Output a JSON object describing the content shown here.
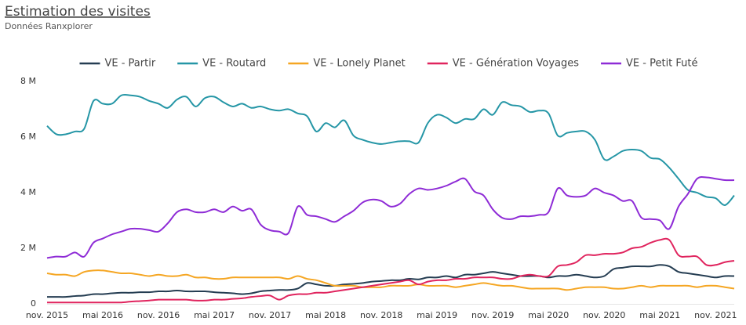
{
  "chart_data": {
    "type": "line",
    "title": "Estimation des visites",
    "subtitle": "Données Ranxplorer",
    "categories": [
      "nov. 2015",
      null,
      null,
      null,
      null,
      null,
      "mai 2016",
      null,
      null,
      null,
      null,
      null,
      "nov. 2016",
      null,
      null,
      null,
      null,
      null,
      "mai 2017",
      null,
      null,
      null,
      null,
      null,
      "nov. 2017",
      null,
      null,
      null,
      null,
      null,
      "mai 2018",
      null,
      null,
      null,
      null,
      null,
      "nov. 2018",
      null,
      null,
      null,
      null,
      null,
      "mai 2019",
      null,
      null,
      null,
      null,
      null,
      "nov. 2019",
      null,
      null,
      null,
      null,
      null,
      "mai 2020",
      null,
      null,
      null,
      null,
      null,
      "nov. 2020",
      null,
      null,
      null,
      null,
      null,
      "mai 2021",
      null,
      null,
      null,
      null,
      null,
      "nov. 2021",
      null,
      null
    ],
    "series": [
      {
        "name": "VE - Partir",
        "color": "#253d52",
        "values": [
          0.25,
          0.25,
          0.25,
          0.28,
          0.3,
          0.35,
          0.35,
          0.38,
          0.4,
          0.4,
          0.42,
          0.42,
          0.45,
          0.45,
          0.48,
          0.45,
          0.45,
          0.45,
          0.42,
          0.4,
          0.38,
          0.35,
          0.38,
          0.45,
          0.48,
          0.5,
          0.5,
          0.55,
          0.75,
          0.7,
          0.65,
          0.65,
          0.7,
          0.72,
          0.75,
          0.8,
          0.82,
          0.85,
          0.85,
          0.9,
          0.88,
          0.95,
          0.95,
          1.0,
          0.95,
          1.05,
          1.05,
          1.1,
          1.15,
          1.1,
          1.05,
          1.0,
          1.0,
          1.0,
          0.95,
          1.0,
          1.0,
          1.05,
          1.0,
          0.95,
          1.0,
          1.25,
          1.3,
          1.35,
          1.35,
          1.35,
          1.4,
          1.35,
          1.15,
          1.1,
          1.05,
          1.0,
          0.95,
          1.0,
          1.0
        ]
      },
      {
        "name": "VE - Routard",
        "color": "#2596a6",
        "values": [
          6.4,
          6.1,
          6.1,
          6.2,
          6.3,
          7.3,
          7.2,
          7.2,
          7.5,
          7.5,
          7.45,
          7.3,
          7.2,
          7.05,
          7.35,
          7.45,
          7.1,
          7.4,
          7.45,
          7.25,
          7.1,
          7.2,
          7.05,
          7.1,
          7.0,
          6.95,
          7.0,
          6.85,
          6.75,
          6.2,
          6.5,
          6.35,
          6.6,
          6.05,
          5.9,
          5.8,
          5.75,
          5.8,
          5.85,
          5.85,
          5.8,
          6.5,
          6.8,
          6.7,
          6.5,
          6.65,
          6.65,
          7.0,
          6.8,
          7.25,
          7.15,
          7.1,
          6.9,
          6.95,
          6.85,
          6.05,
          6.15,
          6.2,
          6.2,
          5.9,
          5.2,
          5.3,
          5.5,
          5.55,
          5.5,
          5.25,
          5.2,
          4.9,
          4.5,
          4.1,
          4.0,
          3.85,
          3.8,
          3.55,
          3.9
        ]
      },
      {
        "name": "VE - Lonely Planet",
        "color": "#f5a623",
        "values": [
          1.1,
          1.05,
          1.05,
          1.0,
          1.15,
          1.2,
          1.2,
          1.15,
          1.1,
          1.1,
          1.05,
          1.0,
          1.05,
          1.0,
          1.0,
          1.05,
          0.95,
          0.95,
          0.9,
          0.9,
          0.95,
          0.95,
          0.95,
          0.95,
          0.95,
          0.95,
          0.9,
          1.0,
          0.9,
          0.85,
          0.75,
          0.65,
          0.65,
          0.65,
          0.6,
          0.6,
          0.6,
          0.65,
          0.65,
          0.65,
          0.7,
          0.65,
          0.65,
          0.65,
          0.6,
          0.65,
          0.7,
          0.75,
          0.7,
          0.65,
          0.65,
          0.6,
          0.55,
          0.55,
          0.55,
          0.55,
          0.5,
          0.55,
          0.6,
          0.6,
          0.6,
          0.55,
          0.55,
          0.6,
          0.65,
          0.6,
          0.65,
          0.65,
          0.65,
          0.65,
          0.6,
          0.65,
          0.65,
          0.6,
          0.55
        ]
      },
      {
        "name": "VE - Génération Voyages",
        "color": "#e0245e",
        "values": [
          0.05,
          0.05,
          0.05,
          0.05,
          0.05,
          0.05,
          0.05,
          0.05,
          0.05,
          0.08,
          0.1,
          0.12,
          0.15,
          0.15,
          0.15,
          0.15,
          0.12,
          0.12,
          0.15,
          0.15,
          0.18,
          0.2,
          0.25,
          0.28,
          0.3,
          0.15,
          0.3,
          0.35,
          0.35,
          0.4,
          0.4,
          0.45,
          0.5,
          0.55,
          0.6,
          0.65,
          0.7,
          0.75,
          0.8,
          0.85,
          0.7,
          0.8,
          0.85,
          0.85,
          0.9,
          0.9,
          0.95,
          0.95,
          0.95,
          0.9,
          0.9,
          1.0,
          1.05,
          1.0,
          1.0,
          1.35,
          1.4,
          1.5,
          1.75,
          1.75,
          1.8,
          1.8,
          1.85,
          2.0,
          2.05,
          2.2,
          2.3,
          2.3,
          1.75,
          1.7,
          1.7,
          1.4,
          1.4,
          1.5,
          1.55
        ]
      },
      {
        "name": "VE - Petit Futé",
        "color": "#8e2bd6",
        "values": [
          1.65,
          1.7,
          1.7,
          1.85,
          1.7,
          2.2,
          2.35,
          2.5,
          2.6,
          2.7,
          2.7,
          2.65,
          2.6,
          2.9,
          3.3,
          3.4,
          3.3,
          3.3,
          3.4,
          3.3,
          3.5,
          3.35,
          3.4,
          2.85,
          2.65,
          2.6,
          2.55,
          3.5,
          3.2,
          3.15,
          3.05,
          2.95,
          3.15,
          3.35,
          3.65,
          3.75,
          3.7,
          3.5,
          3.6,
          3.95,
          4.15,
          4.1,
          4.15,
          4.25,
          4.4,
          4.5,
          4.05,
          3.9,
          3.4,
          3.1,
          3.05,
          3.15,
          3.15,
          3.2,
          3.3,
          4.15,
          3.9,
          3.85,
          3.9,
          4.15,
          4.0,
          3.9,
          3.7,
          3.7,
          3.1,
          3.05,
          3.0,
          2.7,
          3.5,
          3.95,
          4.5,
          4.55,
          4.5,
          4.45,
          4.45
        ]
      }
    ],
    "ylim": [
      0,
      8
    ],
    "yticks": [
      0,
      {
        "value": 2,
        "label": "2 M"
      },
      {
        "value": 4,
        "label": "4 M"
      },
      {
        "value": 6,
        "label": "6 M"
      },
      {
        "value": 8,
        "label": "8 M"
      }
    ],
    "grid": false,
    "legend": "top"
  }
}
